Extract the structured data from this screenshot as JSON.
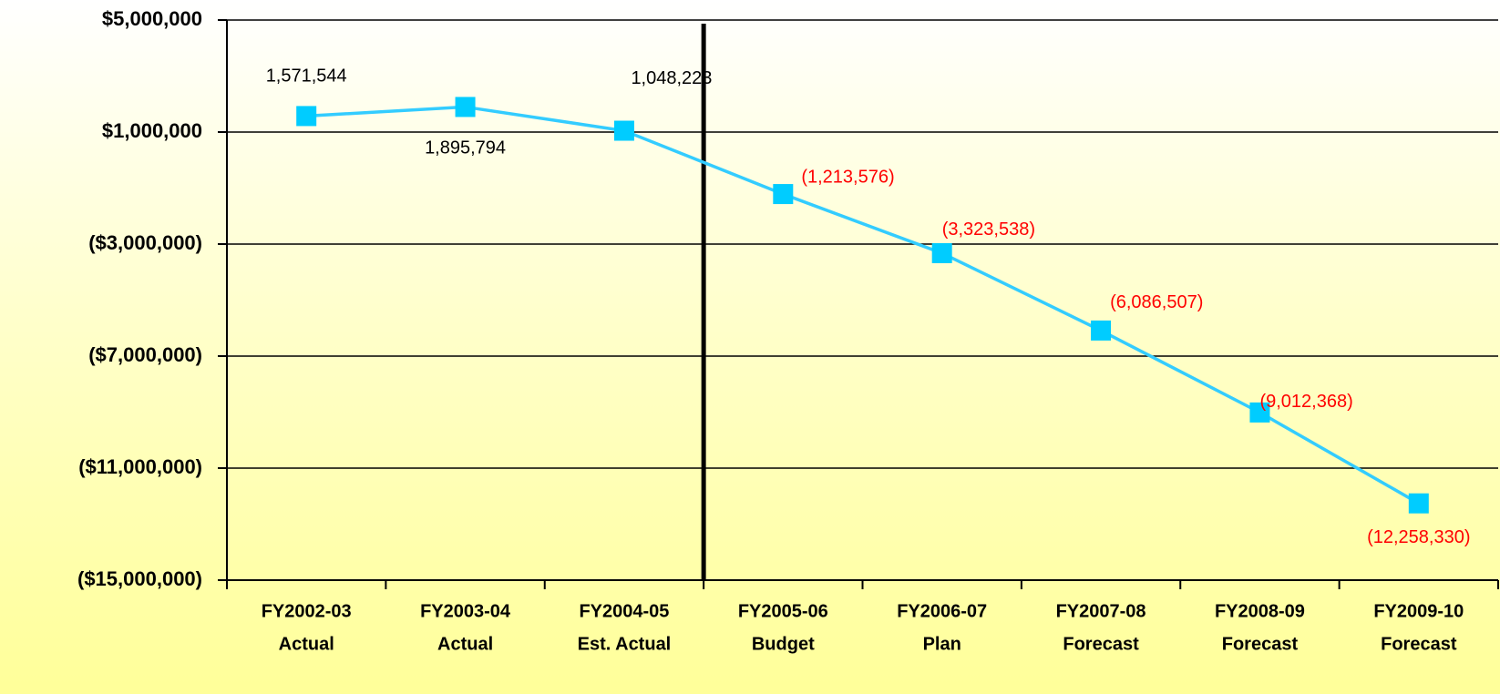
{
  "chart_data": {
    "type": "line",
    "categories": [
      [
        "FY2002-03",
        "Actual"
      ],
      [
        "FY2003-04",
        "Actual"
      ],
      [
        "FY2004-05",
        "Est. Actual"
      ],
      [
        "FY2005-06",
        "Budget"
      ],
      [
        "FY2006-07",
        "Plan"
      ],
      [
        "FY2007-08",
        "Forecast"
      ],
      [
        "FY2008-09",
        "Forecast"
      ],
      [
        "FY2009-10",
        "Forecast"
      ]
    ],
    "series": [
      {
        "color": "#33ccff",
        "values": [
          1571544,
          1895794,
          1048223,
          -1213576,
          -3323538,
          -6086507,
          -9012368,
          -12258330
        ],
        "value_labels": [
          "1,571,544",
          "1,895,794",
          "1,048,223",
          "(1,213,576)",
          "(3,323,538)",
          "(6,086,507)",
          "(9,012,368)",
          "(12,258,330)"
        ]
      }
    ],
    "ylim": [
      -15000000,
      5000000
    ],
    "yticks": [
      {
        "value": -15000000,
        "label": "($15,000,000)"
      },
      {
        "value": -11000000,
        "label": "($11,000,000)"
      },
      {
        "value": -7000000,
        "label": "($7,000,000)"
      },
      {
        "value": -3000000,
        "label": "($3,000,000)"
      },
      {
        "value": 1000000,
        "label": "$1,000,000"
      },
      {
        "value": 5000000,
        "label": "$5,000,000"
      }
    ],
    "grid": true,
    "marker_color": "#00ccff",
    "positive_label_color": "#000000",
    "negative_label_color": "#ff0000"
  }
}
